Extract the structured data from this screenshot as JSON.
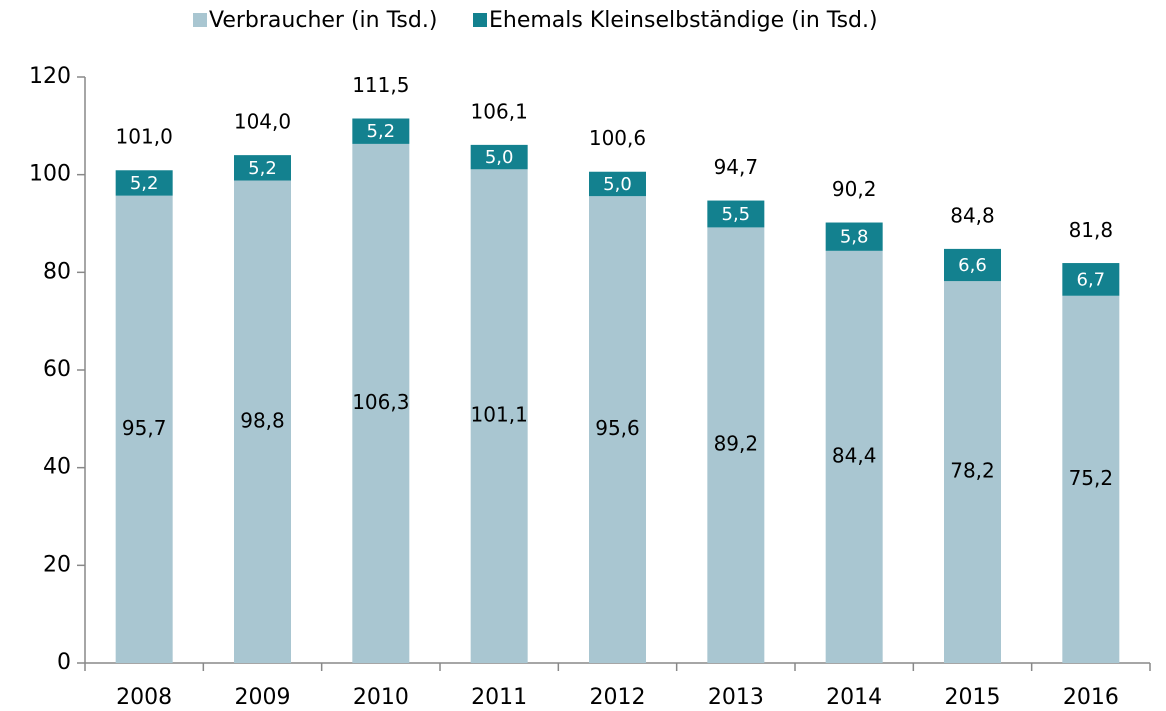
{
  "chart_data": {
    "type": "stacked_bar",
    "categories": [
      "2008",
      "2009",
      "2010",
      "2011",
      "2012",
      "2013",
      "2014",
      "2015",
      "2016"
    ],
    "series": [
      {
        "name": "Verbraucher (in Tsd.)",
        "color": "#a9c6d1",
        "values": [
          95.7,
          98.8,
          106.3,
          101.1,
          95.6,
          89.2,
          84.4,
          78.2,
          75.2
        ],
        "value_labels": [
          "95,7",
          "98,8",
          "106,3",
          "101,1",
          "95,6",
          "89,2",
          "84,4",
          "78,2",
          "75,2"
        ]
      },
      {
        "name": "Ehemals Kleinselbständige (in Tsd.)",
        "color": "#13818f",
        "values": [
          5.2,
          5.2,
          5.2,
          5.0,
          5.0,
          5.5,
          5.8,
          6.6,
          6.7
        ],
        "value_labels": [
          "5,2",
          "5,2",
          "5,2",
          "5,0",
          "5,0",
          "5,5",
          "5,8",
          "6,6",
          "6,7"
        ]
      }
    ],
    "totals": [
      101.0,
      104.0,
      111.5,
      106.1,
      100.6,
      94.7,
      90.2,
      84.8,
      81.8
    ],
    "total_labels": [
      "101,0",
      "104,0",
      "111,5",
      "106,1",
      "100,6",
      "94,7",
      "90,2",
      "84,8",
      "81,8"
    ],
    "ylim": [
      0,
      120
    ],
    "yticks": [
      0,
      20,
      40,
      60,
      80,
      100,
      120
    ],
    "grid": false,
    "legend": "top"
  }
}
